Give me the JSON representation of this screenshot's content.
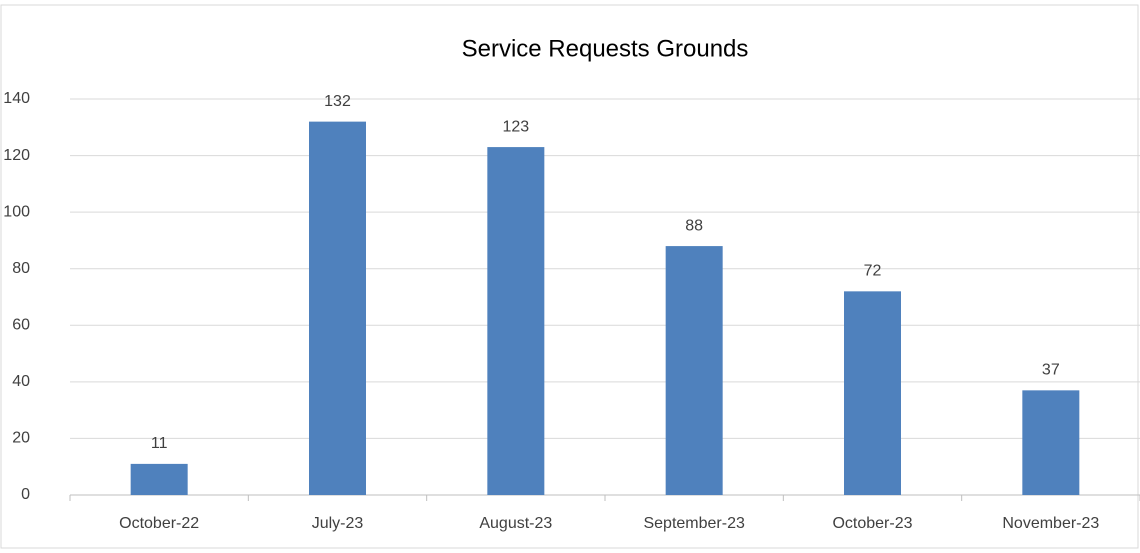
{
  "chart_data": {
    "type": "bar",
    "title": "Service Requests Grounds",
    "categories": [
      "October-22",
      "July-23",
      "August-23",
      "September-23",
      "October-23",
      "November-23"
    ],
    "values": [
      11,
      132,
      123,
      88,
      72,
      37
    ],
    "color": "#4f81bd",
    "ylim": [
      0,
      140
    ],
    "yticks": [
      0,
      20,
      40,
      60,
      80,
      100,
      120,
      140
    ],
    "grid": true,
    "data_labels": true
  }
}
